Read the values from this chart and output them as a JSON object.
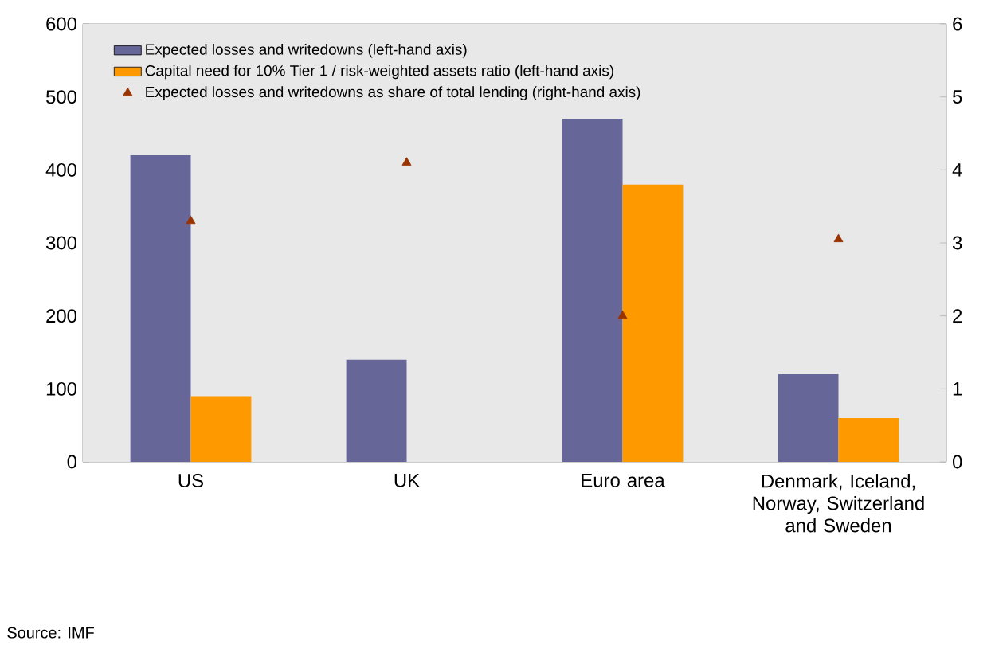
{
  "chart_data": {
    "type": "bar",
    "categories": [
      "US",
      "UK",
      "Euro area",
      "Denmark, Iceland, Norway, Switzerland and Sweden"
    ],
    "series": [
      {
        "name": "Expected losses and writedowns (left-hand axis)",
        "color": "#666699",
        "values": [
          420,
          140,
          470,
          120
        ]
      },
      {
        "name": "Capital need for 10% Tier 1 / risk-weighted assets ratio (left-hand axis)",
        "color": "#ff9900",
        "values": [
          90,
          null,
          380,
          60
        ]
      },
      {
        "name": "Expected losses and writedowns as share of total lending (right-hand axis)",
        "color": "#993300",
        "type": "scatter",
        "axis": "y2",
        "marker": "triangle",
        "values": [
          3.3,
          4.1,
          2.0,
          3.05
        ]
      }
    ],
    "ylim": [
      0,
      600
    ],
    "yticks": [
      0,
      100,
      200,
      300,
      400,
      500,
      600
    ],
    "y2lim": [
      0,
      6
    ],
    "y2ticks": [
      0,
      1,
      2,
      3,
      4,
      5,
      6
    ],
    "legend": "top left",
    "annotations": [
      "Source: IMF"
    ]
  }
}
